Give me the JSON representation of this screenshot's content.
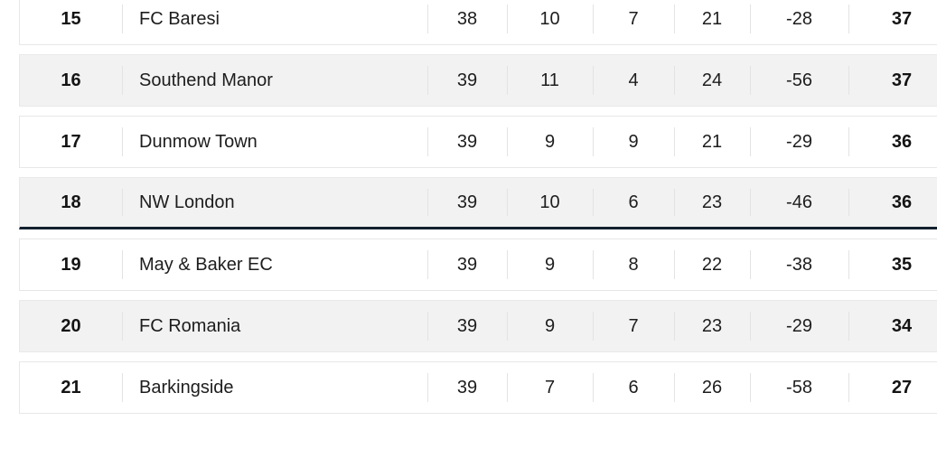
{
  "league_table": {
    "rows": [
      {
        "position": "15",
        "team": "FC Baresi",
        "played": "38",
        "won": "10",
        "drawn": "7",
        "lost": "21",
        "goal_difference": "-28",
        "points": "37"
      },
      {
        "position": "16",
        "team": "Southend Manor",
        "played": "39",
        "won": "11",
        "drawn": "4",
        "lost": "24",
        "goal_difference": "-56",
        "points": "37"
      },
      {
        "position": "17",
        "team": "Dunmow Town",
        "played": "39",
        "won": "9",
        "drawn": "9",
        "lost": "21",
        "goal_difference": "-29",
        "points": "36"
      },
      {
        "position": "18",
        "team": "NW London",
        "played": "39",
        "won": "10",
        "drawn": "6",
        "lost": "23",
        "goal_difference": "-46",
        "points": "36"
      },
      {
        "position": "19",
        "team": "May & Baker EC",
        "played": "39",
        "won": "9",
        "drawn": "8",
        "lost": "22",
        "goal_difference": "-38",
        "points": "35"
      },
      {
        "position": "20",
        "team": "FC Romania",
        "played": "39",
        "won": "9",
        "drawn": "7",
        "lost": "23",
        "goal_difference": "-29",
        "points": "34"
      },
      {
        "position": "21",
        "team": "Barkingside",
        "played": "39",
        "won": "7",
        "drawn": "6",
        "lost": "26",
        "goal_difference": "-58",
        "points": "27"
      }
    ],
    "relegation_line_below_position": "18",
    "colors": {
      "relegation_line": "#13202f",
      "row_shaded": "#f2f2f2",
      "row_border": "#e7e7e7",
      "column_separator": "#e3e3e3",
      "text": "#1d1d1d"
    }
  }
}
